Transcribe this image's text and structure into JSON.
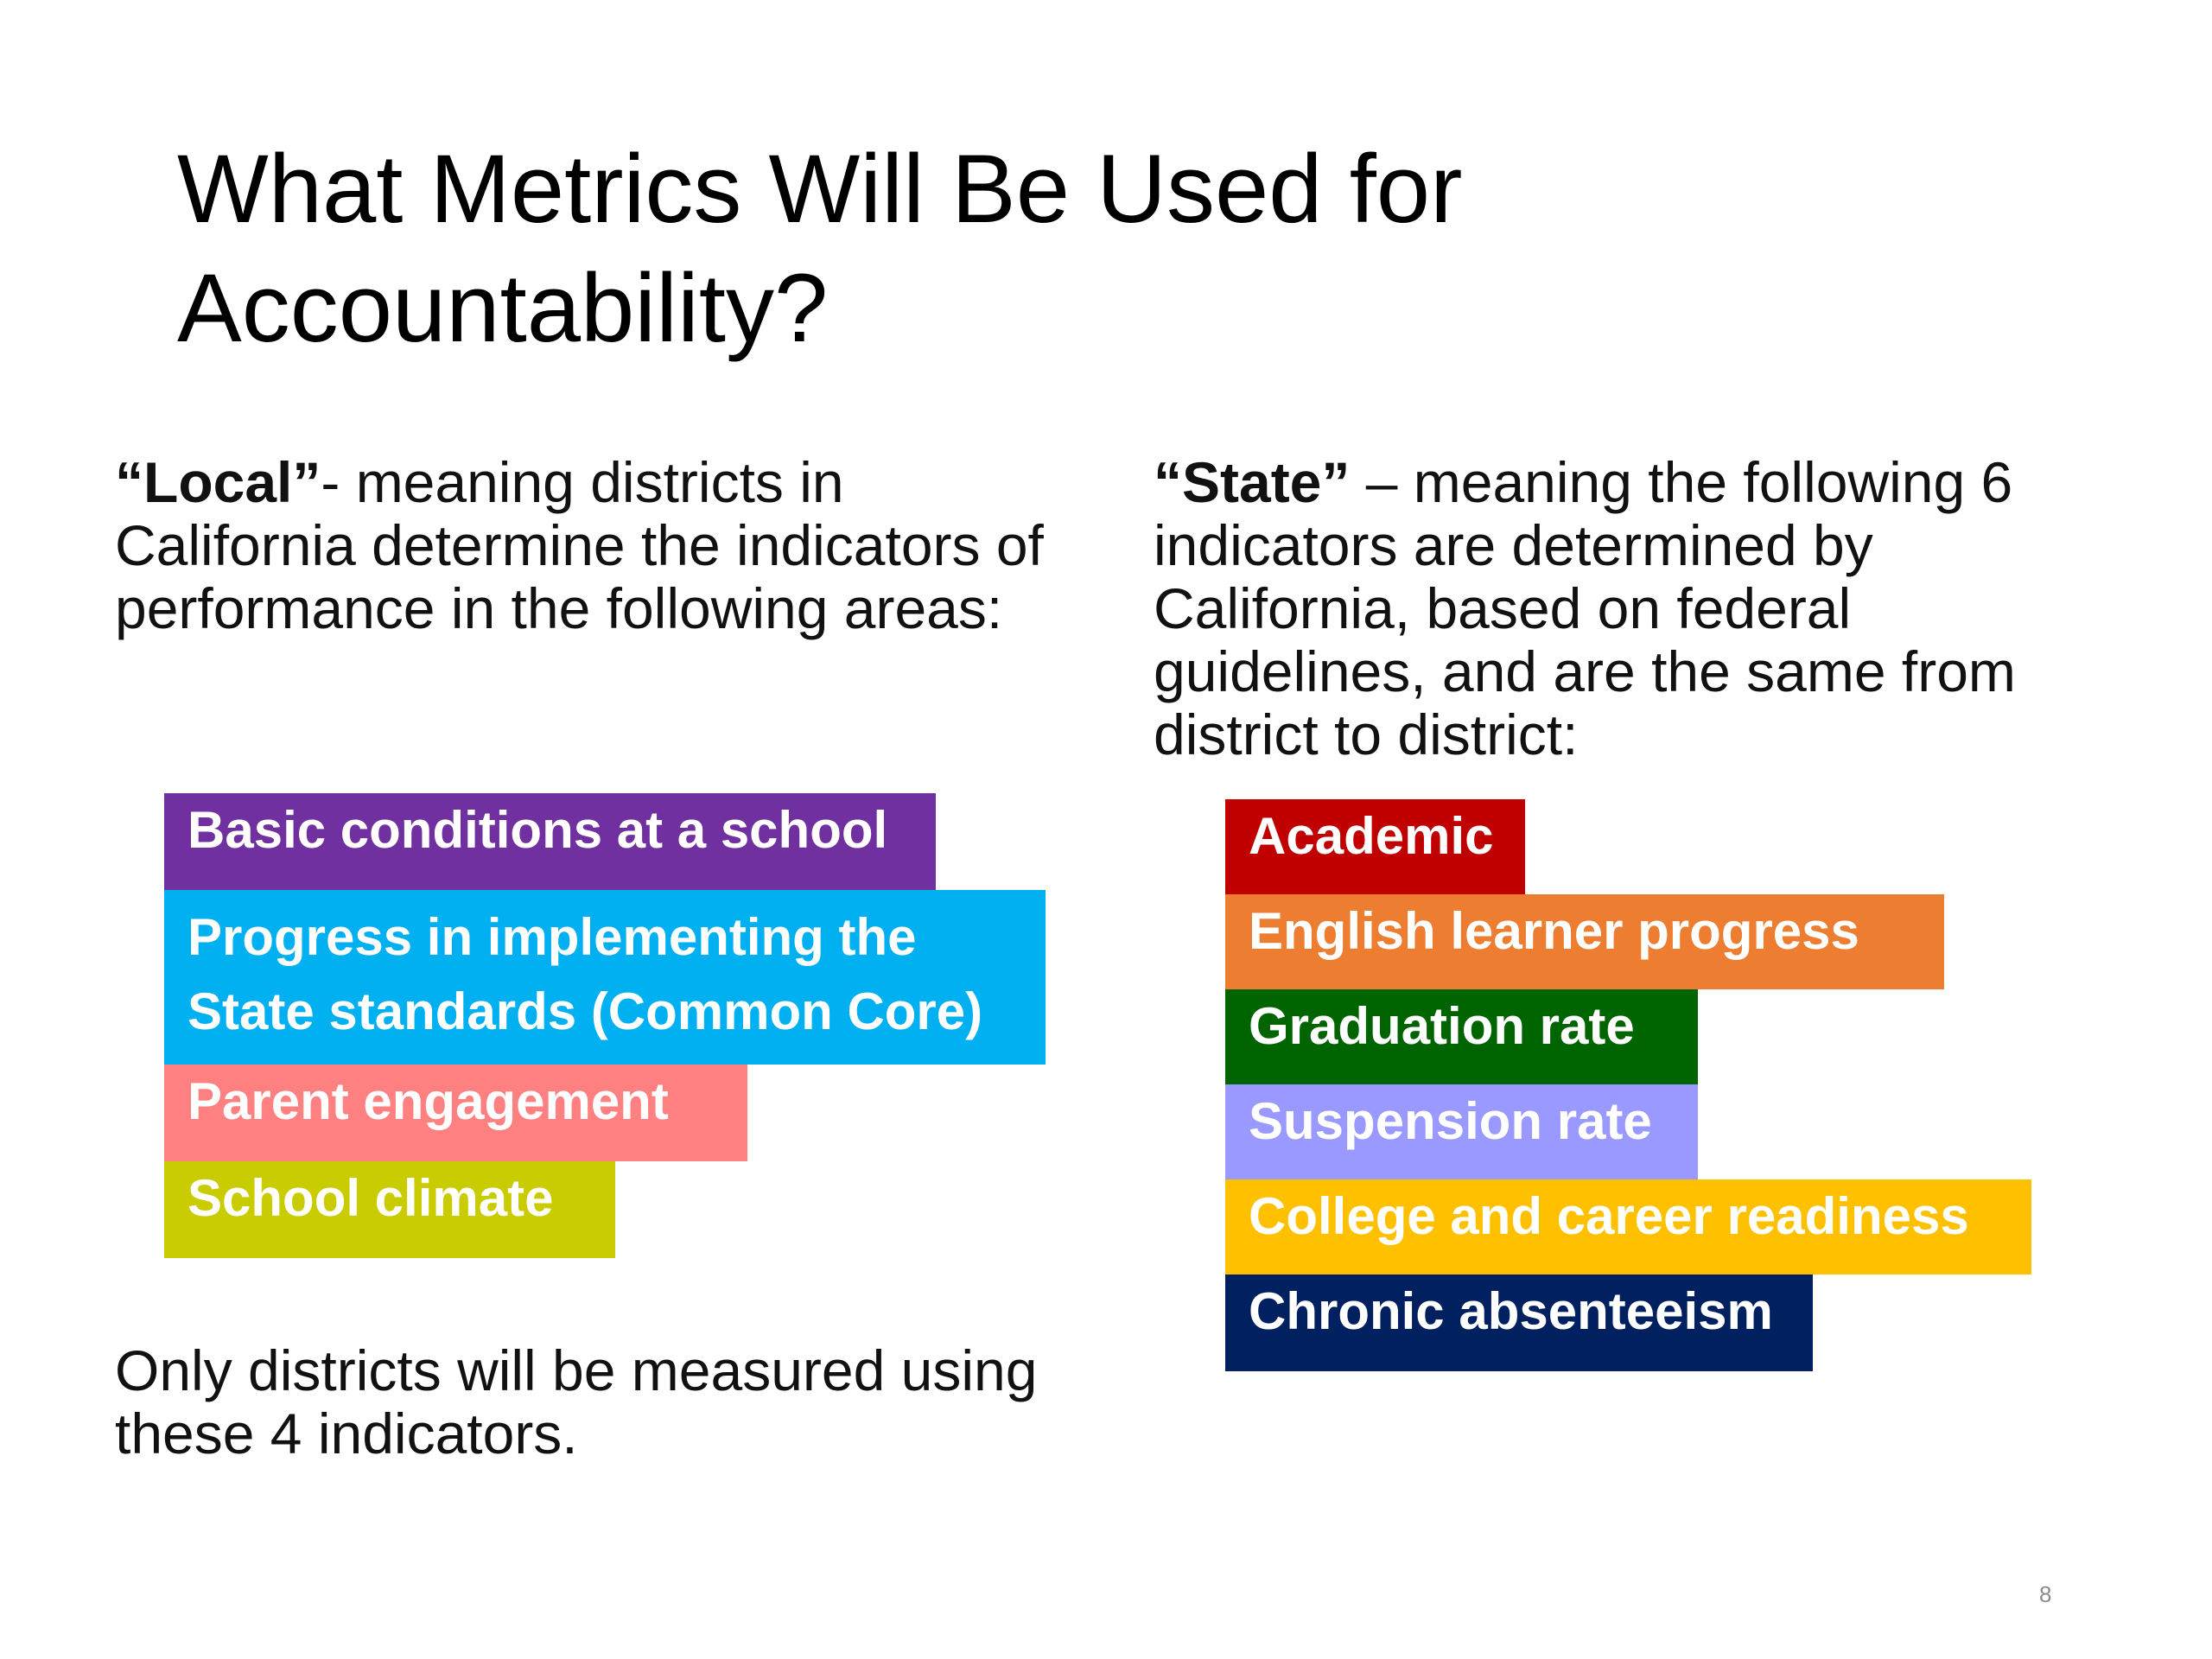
{
  "slide": {
    "title": "What Metrics Will Be Used for Accountability?",
    "page_number": "8"
  },
  "local": {
    "heading": "“Local”",
    "intro": "- meaning districts in California determine the indicators of performance in the following areas:",
    "footer": "Only districts will be measured using these 4 indicators.",
    "items": [
      {
        "label": "Basic conditions at a school",
        "color": "#7030a0"
      },
      {
        "label": "Progress in implementing the State standards (Common Core)",
        "color": "#00b0f0"
      },
      {
        "label": "Parent engagement",
        "color": "#ff8080"
      },
      {
        "label": "School climate",
        "color": "#c9cc00"
      }
    ]
  },
  "state": {
    "heading": "“State”",
    "intro": " – meaning the following 6 indicators are determined by California, based on federal guidelines, and are the same from district to district:",
    "items": [
      {
        "label": "Academic",
        "color": "#c00000"
      },
      {
        "label": "English learner progress",
        "color": "#ed7d31"
      },
      {
        "label": "Graduation rate",
        "color": "#006400"
      },
      {
        "label": "Suspension rate",
        "color": "#9999ff"
      },
      {
        "label": "College and career readiness",
        "color": "#ffc000"
      },
      {
        "label": "Chronic absenteeism",
        "color": "#002060"
      }
    ]
  }
}
